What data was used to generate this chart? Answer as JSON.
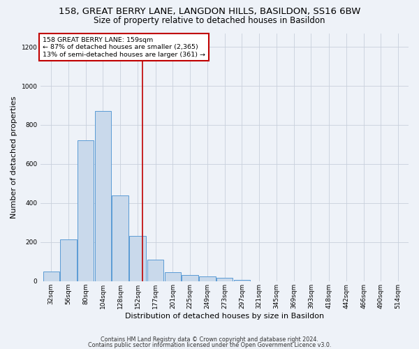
{
  "title1": "158, GREAT BERRY LANE, LANGDON HILLS, BASILDON, SS16 6BW",
  "title2": "Size of property relative to detached houses in Basildon",
  "xlabel": "Distribution of detached houses by size in Basildon",
  "ylabel": "Number of detached properties",
  "bin_labels": [
    "32sqm",
    "56sqm",
    "80sqm",
    "104sqm",
    "128sqm",
    "152sqm",
    "177sqm",
    "201sqm",
    "225sqm",
    "249sqm",
    "273sqm",
    "297sqm",
    "321sqm",
    "345sqm",
    "369sqm",
    "393sqm",
    "418sqm",
    "442sqm",
    "466sqm",
    "490sqm",
    "514sqm"
  ],
  "bin_edges": [
    32,
    56,
    80,
    104,
    128,
    152,
    177,
    201,
    225,
    249,
    273,
    297,
    321,
    345,
    369,
    393,
    418,
    442,
    466,
    490,
    514
  ],
  "bar_heights": [
    50,
    215,
    720,
    870,
    440,
    230,
    110,
    47,
    33,
    25,
    17,
    7,
    0,
    0,
    0,
    0,
    0,
    0,
    0,
    0,
    0
  ],
  "bar_color": "#c9d9eb",
  "bar_edge_color": "#5b9bd5",
  "grid_color": "#c8d0dc",
  "vline_x": 159,
  "vline_color": "#c00000",
  "annotation_text": "158 GREAT BERRY LANE: 159sqm\n← 87% of detached houses are smaller (2,365)\n13% of semi-detached houses are larger (361) →",
  "annotation_box_color": "#ffffff",
  "annotation_box_edge": "#c00000",
  "ylim": [
    0,
    1270
  ],
  "yticks": [
    0,
    200,
    400,
    600,
    800,
    1000,
    1200
  ],
  "footer1": "Contains HM Land Registry data © Crown copyright and database right 2024.",
  "footer2": "Contains public sector information licensed under the Open Government Licence v3.0.",
  "bg_color": "#eef2f8",
  "title1_fontsize": 9.5,
  "title2_fontsize": 8.5,
  "xlabel_fontsize": 8,
  "ylabel_fontsize": 8,
  "tick_fontsize": 6.5,
  "annotation_fontsize": 6.8,
  "footer_fontsize": 5.8
}
